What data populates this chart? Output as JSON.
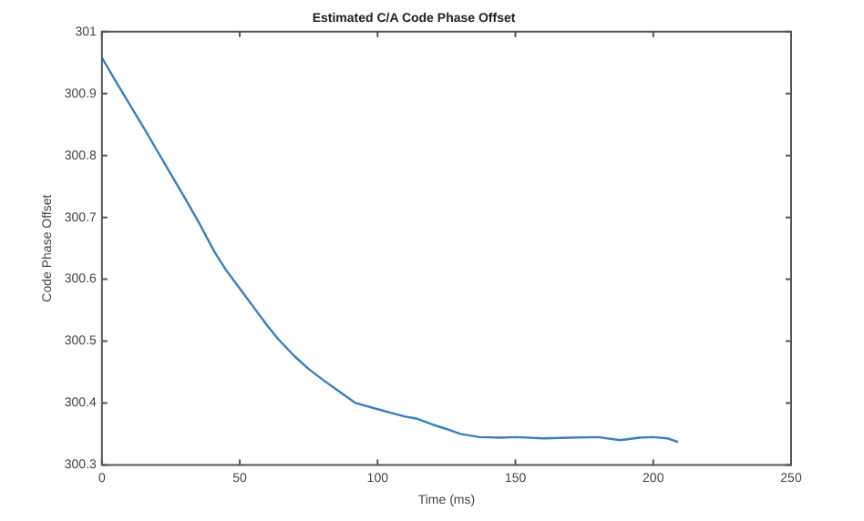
{
  "chart_data": {
    "type": "line",
    "title": "Estimated C/A Code Phase Offset",
    "xlabel": "Time (ms)",
    "ylabel": "Code Phase Offset",
    "x": [
      0,
      5,
      10,
      15,
      20,
      25,
      30,
      35,
      41,
      45,
      50,
      55,
      60,
      64,
      70,
      75,
      80,
      85,
      92,
      100,
      105,
      110,
      114,
      120,
      125,
      130,
      137,
      145,
      150,
      160,
      170,
      180,
      188,
      195,
      200,
      205,
      209
    ],
    "series": [
      {
        "color": "#3c7fc0",
        "values": [
          300.958,
          300.92,
          300.883,
          300.846,
          300.808,
          300.77,
          300.732,
          300.693,
          300.643,
          300.615,
          300.585,
          300.555,
          300.525,
          300.503,
          300.475,
          300.455,
          300.438,
          300.422,
          300.4,
          300.39,
          300.384,
          300.378,
          300.375,
          300.365,
          300.358,
          300.35,
          300.345,
          300.344,
          300.345,
          300.343,
          300.344,
          300.345,
          300.34,
          300.344,
          300.345,
          300.343,
          300.337
        ]
      }
    ],
    "xlim": [
      0,
      250
    ],
    "xticks": [
      0,
      50,
      100,
      150,
      200,
      250
    ],
    "ylim": [
      300.3,
      301
    ],
    "yticks": [
      300.3,
      300.4,
      300.5,
      300.6,
      300.7,
      300.8,
      300.9,
      301
    ],
    "grid": false,
    "legend": false
  }
}
